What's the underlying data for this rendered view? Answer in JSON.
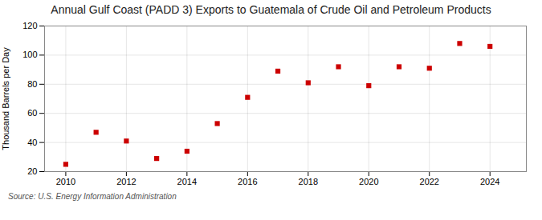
{
  "chart_data": {
    "type": "scatter",
    "title": "Annual Gulf Coast (PADD 3) Exports to Guatemala of Crude Oil and Petroleum Products",
    "ylabel": "Thousand Barrels per Day",
    "source": "Source: U.S. Energy Information Administration",
    "x": [
      2010,
      2011,
      2012,
      2013,
      2014,
      2015,
      2016,
      2017,
      2018,
      2019,
      2020,
      2021,
      2022,
      2023,
      2024
    ],
    "values": [
      25,
      47,
      41,
      29,
      34,
      53,
      71,
      89,
      81,
      92,
      79,
      92,
      91,
      108,
      106
    ],
    "color": "#cc0000",
    "marker": "square",
    "xlim": [
      2009.3,
      2025.2
    ],
    "xticks": [
      2010,
      2012,
      2014,
      2016,
      2018,
      2020,
      2022,
      2024
    ],
    "ylim": [
      20,
      120
    ],
    "yticks": [
      20,
      40,
      60,
      80,
      100,
      120
    ],
    "grid": true
  }
}
